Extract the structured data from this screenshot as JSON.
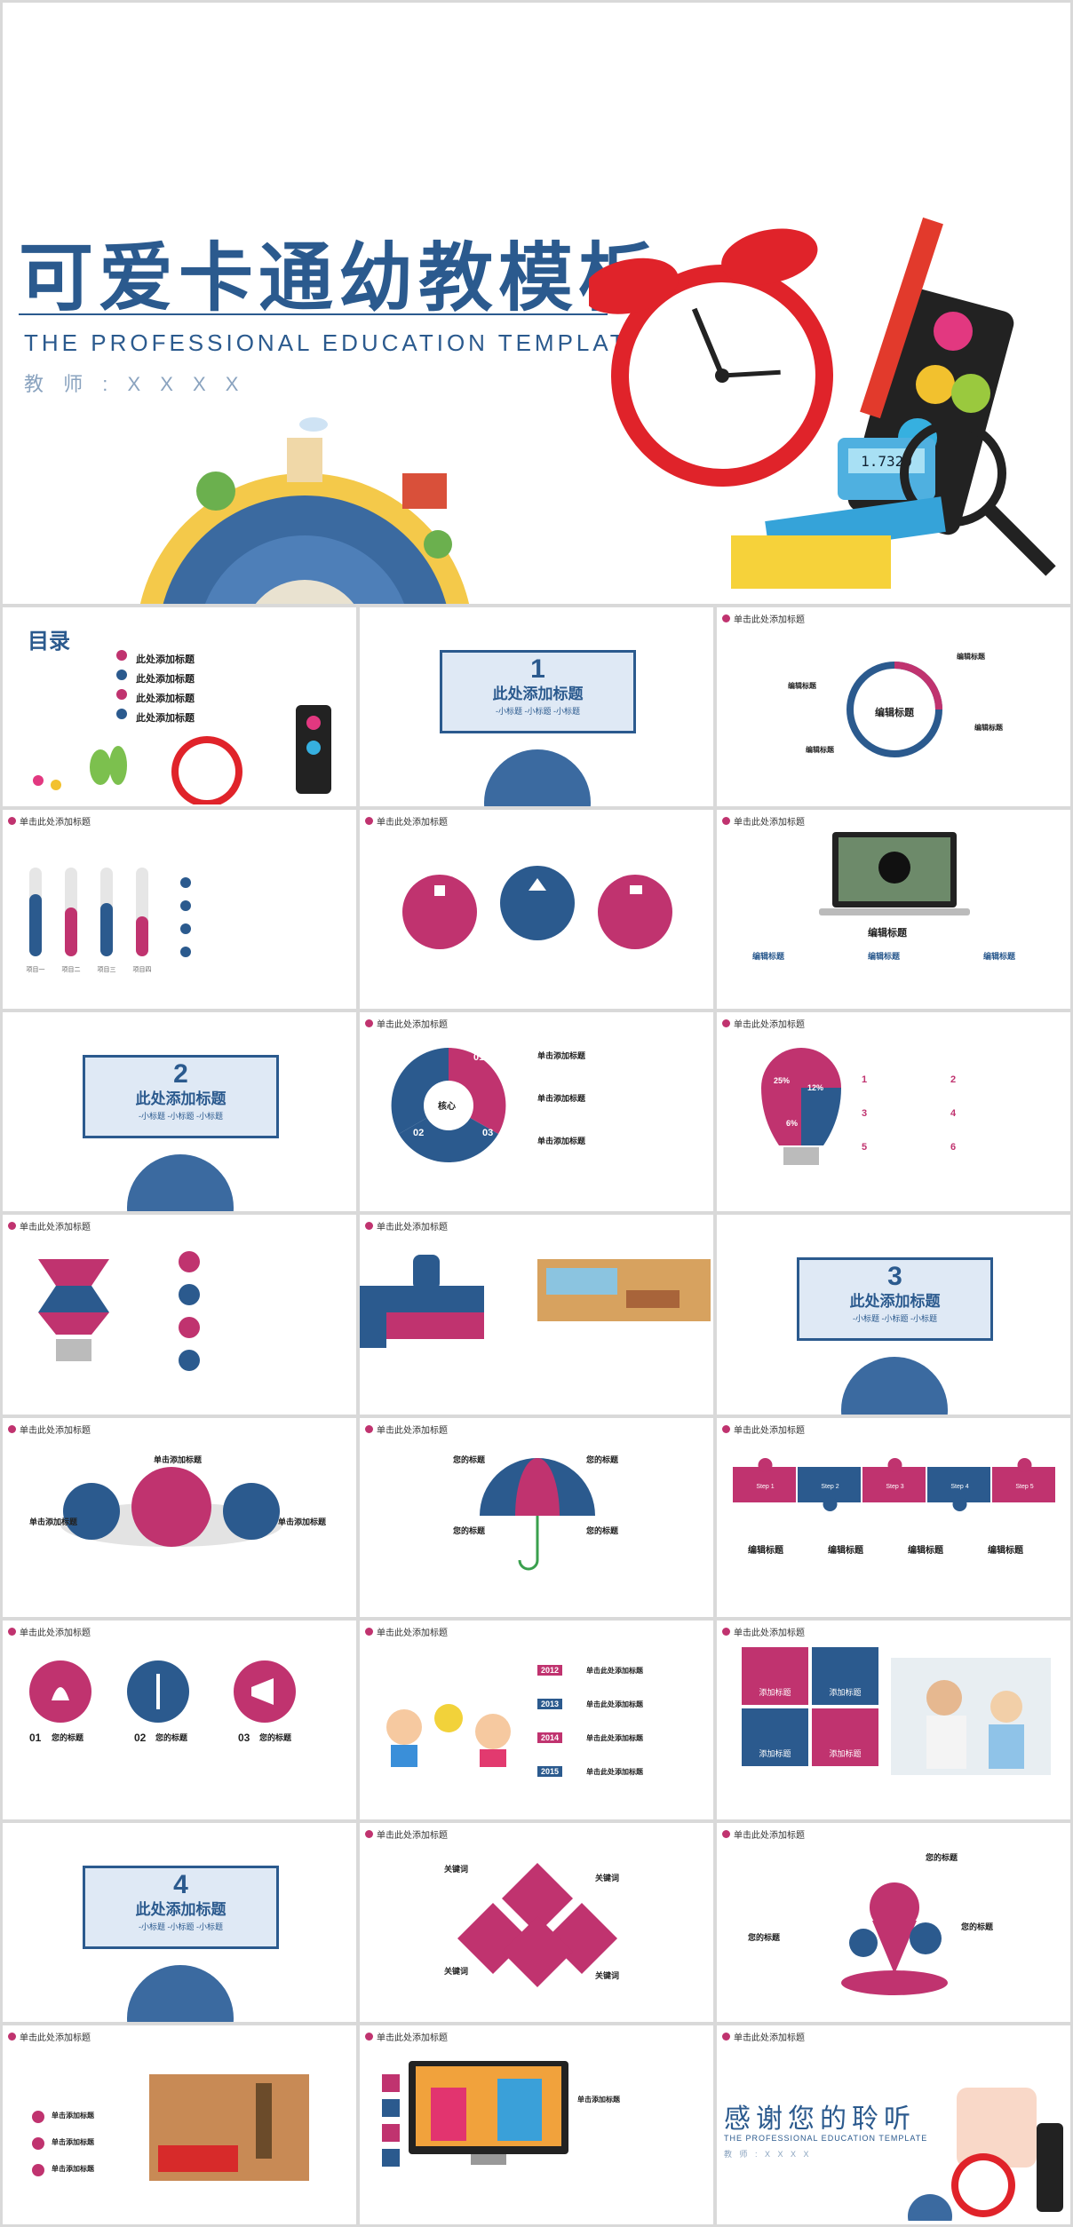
{
  "cover": {
    "title": "可爱卡通幼教模板",
    "subtitle": "THE PROFESSIONAL EDUCATION TEMPLATE",
    "teacher": "教 师 : X X X X",
    "calculator_display": "1.7320"
  },
  "common": {
    "header": "单击此处添加标题",
    "section_title": "此处添加标题",
    "section_sub": "-小标题 -小标题 -小标题",
    "edit_title": "编辑标题",
    "add_title": "添加标题",
    "click_add": "单击添加标题",
    "your_title": "您的标题",
    "keyword": "关键词"
  },
  "toc": {
    "title": "目录",
    "items": [
      "此处添加标题",
      "此处添加标题",
      "此处添加标题",
      "此处添加标题"
    ]
  },
  "sections": [
    "1",
    "2",
    "3",
    "4"
  ],
  "bars": {
    "labels": [
      "项目一",
      "项目二",
      "项目三",
      "项目四"
    ],
    "values": [
      0.7,
      0.55,
      0.6,
      0.45
    ]
  },
  "pie": {
    "center": "核心",
    "labels": [
      "01",
      "02",
      "03"
    ]
  },
  "bulb": {
    "values": [
      "25%",
      "12%",
      "6%"
    ],
    "numbers": [
      "1",
      "2",
      "3",
      "4",
      "5",
      "6"
    ]
  },
  "puzzle": {
    "steps": [
      "Step 1",
      "Step 2",
      "Step 3",
      "Step 4",
      "Step 5"
    ]
  },
  "timeline": {
    "years": [
      "2012",
      "2013",
      "2014",
      "2015"
    ],
    "heads": [
      "单击此处添加标题",
      "单击此处添加标题",
      "单击此处添加标题",
      "单击此处添加标题"
    ]
  },
  "icons3": {
    "nums": [
      "01",
      "02",
      "03"
    ]
  },
  "thanks": {
    "title": "感谢您的聆听",
    "subtitle": "THE PROFESSIONAL EDUCATION TEMPLATE",
    "teacher": "教 师 : X X X X"
  },
  "colors": {
    "blue": "#2b5a8e",
    "pink": "#c0336f"
  }
}
